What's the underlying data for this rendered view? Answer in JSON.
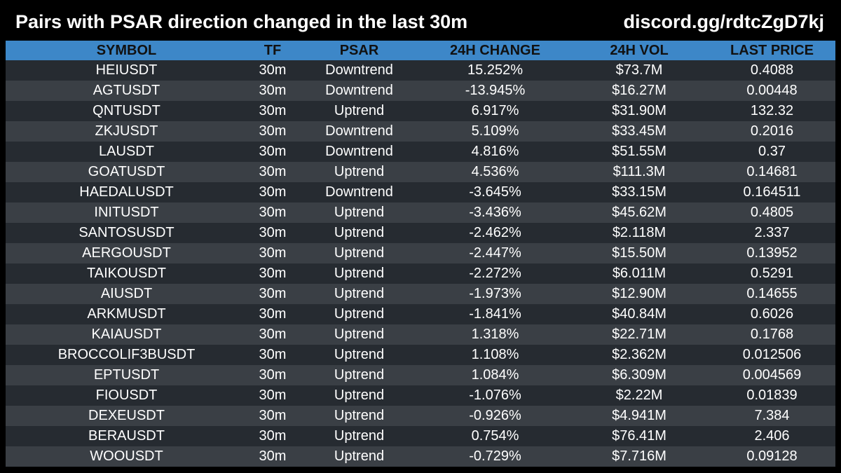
{
  "header": {
    "title": "Pairs with PSAR direction changed in the last 30m",
    "invite": "discord.gg/rdtcZgD7kj"
  },
  "table": {
    "columns": [
      "SYMBOL",
      "TF",
      "PSAR",
      "24H CHANGE",
      "24H VOL",
      "LAST PRICE"
    ],
    "rows": [
      [
        "HEIUSDT",
        "30m",
        "Downtrend",
        "15.252%",
        "$73.7M",
        "0.4088"
      ],
      [
        "AGTUSDT",
        "30m",
        "Downtrend",
        "-13.945%",
        "$16.27M",
        "0.00448"
      ],
      [
        "QNTUSDT",
        "30m",
        "Uptrend",
        "6.917%",
        "$31.90M",
        "132.32"
      ],
      [
        "ZKJUSDT",
        "30m",
        "Downtrend",
        "5.109%",
        "$33.45M",
        "0.2016"
      ],
      [
        "LAUSDT",
        "30m",
        "Downtrend",
        "4.816%",
        "$51.55M",
        "0.37"
      ],
      [
        "GOATUSDT",
        "30m",
        "Uptrend",
        "4.536%",
        "$111.3M",
        "0.14681"
      ],
      [
        "HAEDALUSDT",
        "30m",
        "Downtrend",
        "-3.645%",
        "$33.15M",
        "0.164511"
      ],
      [
        "INITUSDT",
        "30m",
        "Uptrend",
        "-3.436%",
        "$45.62M",
        "0.4805"
      ],
      [
        "SANTOSUSDT",
        "30m",
        "Uptrend",
        "-2.462%",
        "$2.118M",
        "2.337"
      ],
      [
        "AERGOUSDT",
        "30m",
        "Uptrend",
        "-2.447%",
        "$15.50M",
        "0.13952"
      ],
      [
        "TAIKOUSDT",
        "30m",
        "Uptrend",
        "-2.272%",
        "$6.011M",
        "0.5291"
      ],
      [
        "AIUSDT",
        "30m",
        "Uptrend",
        "-1.973%",
        "$12.90M",
        "0.14655"
      ],
      [
        "ARKMUSDT",
        "30m",
        "Uptrend",
        "-1.841%",
        "$40.84M",
        "0.6026"
      ],
      [
        "KAIAUSDT",
        "30m",
        "Uptrend",
        "1.318%",
        "$22.71M",
        "0.1768"
      ],
      [
        "BROCCOLIF3BUSDT",
        "30m",
        "Uptrend",
        "1.108%",
        "$2.362M",
        "0.012506"
      ],
      [
        "EPTUSDT",
        "30m",
        "Uptrend",
        "1.084%",
        "$6.309M",
        "0.004569"
      ],
      [
        "FIOUSDT",
        "30m",
        "Uptrend",
        "-1.076%",
        "$2.22M",
        "0.01839"
      ],
      [
        "DEXEUSDT",
        "30m",
        "Uptrend",
        "-0.926%",
        "$4.941M",
        "7.384"
      ],
      [
        "BERAUSDT",
        "30m",
        "Uptrend",
        "0.754%",
        "$76.41M",
        "2.406"
      ],
      [
        "WOOUSDT",
        "30m",
        "Uptrend",
        "-0.729%",
        "$7.716M",
        "0.09128"
      ]
    ]
  },
  "colors": {
    "background": "#000000",
    "header_row": "#3d87c8",
    "row_dark": "#262b31",
    "row_light": "#3a3f45",
    "text": "#ffffff"
  }
}
